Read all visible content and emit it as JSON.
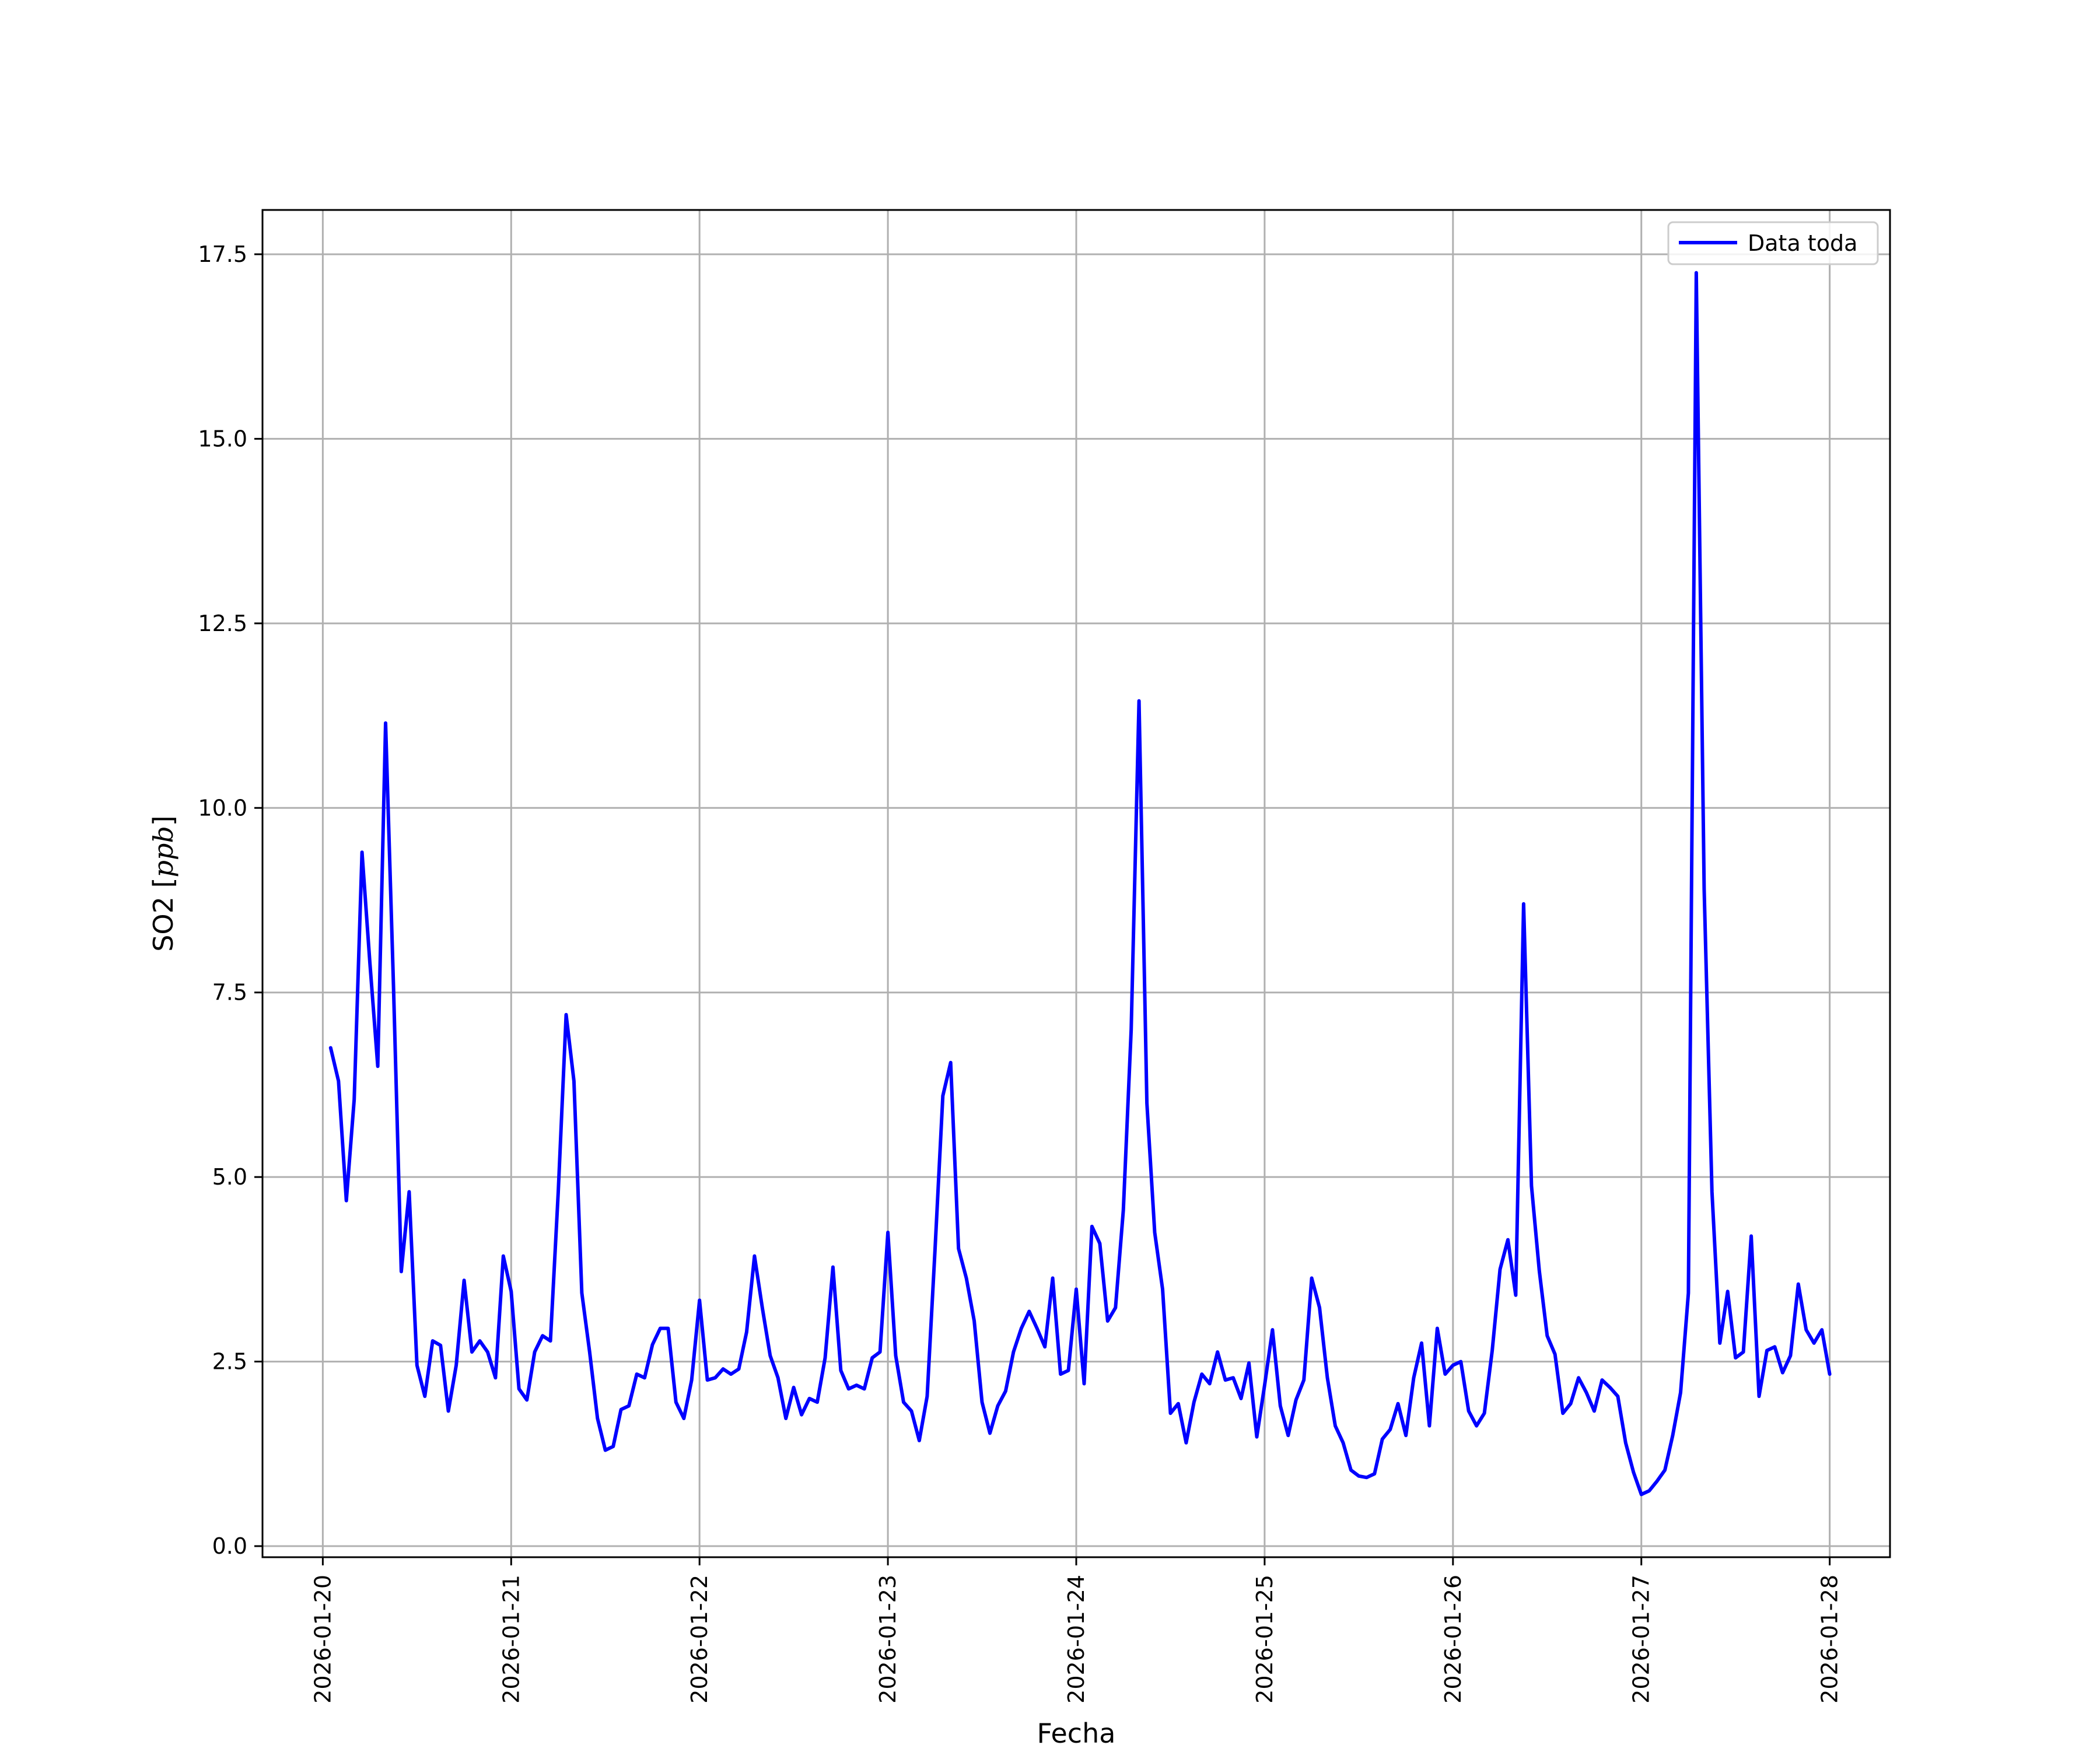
{
  "colors": {
    "series": "#0000ff",
    "grid": "#b0b0b0",
    "axes": "#000000"
  },
  "chart_data": {
    "type": "line",
    "title": "",
    "xlabel": "Fecha",
    "ylabel": "SO2 [ppb]",
    "ylabel_text": "SO2 [",
    "ylabel_unit": "ppb",
    "ylabel_close": "]",
    "xlim": [
      "2026-01-19T16:19",
      "2026-01-28T07:41"
    ],
    "ylim": [
      -0.15,
      18.1
    ],
    "grid": true,
    "legend": {
      "position": "top-right",
      "entries": [
        "Data toda"
      ]
    },
    "x_ticks": [
      "2026-01-20",
      "2026-01-21",
      "2026-01-22",
      "2026-01-23",
      "2026-01-24",
      "2026-01-25",
      "2026-01-26",
      "2026-01-27",
      "2026-01-28"
    ],
    "y_ticks": [
      "0.0",
      "2.5",
      "5.0",
      "7.5",
      "10.0",
      "12.5",
      "15.0",
      "17.5"
    ],
    "series": [
      {
        "name": "Data toda",
        "color": "#0000ff",
        "interval_hours": 1,
        "x_start": "2026-01-20T01:00",
        "x_end": "2026-01-28T00:00",
        "y": [
          6.75,
          6.3,
          4.68,
          6.05,
          9.4,
          7.9,
          6.5,
          11.15,
          7.6,
          3.72,
          4.8,
          2.45,
          2.03,
          2.78,
          2.72,
          1.83,
          2.45,
          3.6,
          2.63,
          2.78,
          2.63,
          2.28,
          3.93,
          3.45,
          2.13,
          1.98,
          2.63,
          2.85,
          2.78,
          4.8,
          7.2,
          6.3,
          3.43,
          2.63,
          1.73,
          1.3,
          1.35,
          1.85,
          1.9,
          2.33,
          2.28,
          2.73,
          2.95,
          2.95,
          1.95,
          1.73,
          2.25,
          3.33,
          2.25,
          2.28,
          2.4,
          2.33,
          2.4,
          2.9,
          3.93,
          3.23,
          2.58,
          2.28,
          1.73,
          2.15,
          1.78,
          2.0,
          1.95,
          2.55,
          3.78,
          2.38,
          2.13,
          2.18,
          2.13,
          2.55,
          2.63,
          4.25,
          2.58,
          1.95,
          1.83,
          1.43,
          2.03,
          4.0,
          6.1,
          6.55,
          4.03,
          3.63,
          3.05,
          1.95,
          1.53,
          1.9,
          2.1,
          2.63,
          2.95,
          3.18,
          2.95,
          2.7,
          3.63,
          2.33,
          2.38,
          3.48,
          2.2,
          4.33,
          4.1,
          3.05,
          3.23,
          4.55,
          7.0,
          11.45,
          6.0,
          4.25,
          3.48,
          1.8,
          1.93,
          1.4,
          1.95,
          2.33,
          2.2,
          2.63,
          2.25,
          2.28,
          2.0,
          2.48,
          1.48,
          2.18,
          2.93,
          1.9,
          1.5,
          1.98,
          2.25,
          3.63,
          3.23,
          2.28,
          1.63,
          1.4,
          1.03,
          0.95,
          0.93,
          0.98,
          1.45,
          1.58,
          1.93,
          1.5,
          2.28,
          2.75,
          1.63,
          2.95,
          2.33,
          2.45,
          2.5,
          1.83,
          1.63,
          1.8,
          2.65,
          3.75,
          4.15,
          3.4,
          8.7,
          4.88,
          3.73,
          2.85,
          2.6,
          1.8,
          1.93,
          2.28,
          2.08,
          1.83,
          2.25,
          2.15,
          2.03,
          1.4,
          1.0,
          0.7,
          0.75,
          0.88,
          1.03,
          1.5,
          2.08,
          3.43,
          17.25,
          8.9,
          4.8,
          2.75,
          3.45,
          2.55,
          2.63,
          4.2,
          2.03,
          2.65,
          2.7,
          2.35,
          2.58,
          3.55,
          2.93,
          2.75,
          2.93,
          2.33
        ]
      }
    ]
  }
}
